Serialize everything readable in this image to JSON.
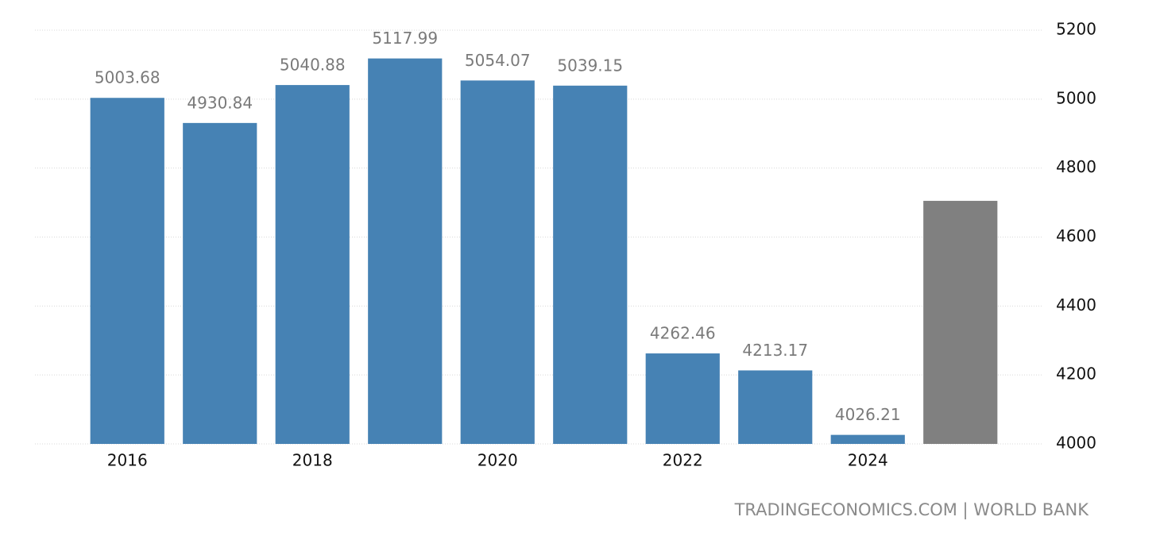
{
  "chart_data": {
    "type": "bar",
    "categories": [
      "2016",
      null,
      "2018",
      null,
      "2020",
      null,
      "2022",
      null,
      "2024",
      null
    ],
    "values": [
      5003.68,
      4930.84,
      5040.88,
      5117.99,
      5054.07,
      5039.15,
      4262.46,
      4213.17,
      4026.21,
      4705
    ],
    "value_labels": [
      "5003.68",
      "4930.84",
      "5040.88",
      "5117.99",
      "5054.07",
      "5039.15",
      "4262.46",
      "4213.17",
      "4026.21",
      null
    ],
    "colors": [
      "#4682b4",
      "#4682b4",
      "#4682b4",
      "#4682b4",
      "#4682b4",
      "#4682b4",
      "#4682b4",
      "#4682b4",
      "#4682b4",
      "#808080"
    ],
    "ylim": [
      4000,
      5200
    ],
    "yticks": [
      4000,
      4200,
      4400,
      4600,
      4800,
      5000,
      5200
    ],
    "grid": true,
    "source": "TRADINGECONOMICS.COM | WORLD BANK"
  }
}
